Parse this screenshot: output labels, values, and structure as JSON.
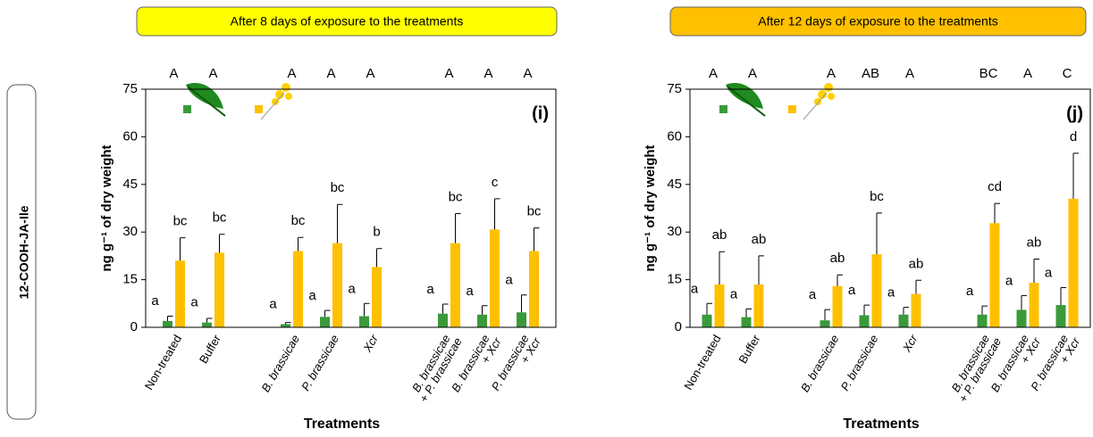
{
  "row_label": "12-COOH-JA-Ile",
  "chart_data": [
    {
      "type": "bar",
      "title": "After 8 days of exposure to the treatments",
      "title_color": "#ffff00",
      "panel_label": "(i)",
      "y_label": "ng g⁻¹ of dry weight",
      "x_label": "Treatments",
      "categories": [
        "Non-treated",
        "Buffer",
        "B. brassicae",
        "P. brassicae",
        "Xcr",
        "B. brassicae + P. brassicae",
        "B. brassicae + Xcr",
        "P. brassicae + Xcr"
      ],
      "group_letters": [
        "A",
        "A",
        "A",
        "A",
        "A",
        "A",
        "A",
        "A"
      ],
      "series": [
        {
          "color": "#3a9a3a",
          "values": [
            2,
            1.5,
            1,
            3.3,
            3.5,
            4.3,
            4,
            4.7
          ],
          "errors": [
            1.5,
            1.3,
            0.5,
            2,
            4,
            3,
            2.8,
            5.5
          ],
          "letters": [
            "a",
            "a",
            "a",
            "a",
            "a",
            "a",
            "a",
            "a"
          ]
        },
        {
          "color": "#ffc000",
          "values": [
            21,
            23.5,
            24,
            26.5,
            19,
            26.5,
            30.8,
            24
          ],
          "errors": [
            7.2,
            5.8,
            4.3,
            12.2,
            5.8,
            9.3,
            9.7,
            7.3
          ],
          "letters": [
            "bc",
            "bc",
            "bc",
            "bc",
            "b",
            "bc",
            "c",
            "bc"
          ]
        }
      ],
      "ylim": [
        0,
        75
      ],
      "yticks": [
        0,
        15,
        30,
        45,
        60,
        75
      ]
    },
    {
      "type": "bar",
      "title": "After 12 days of exposure to the treatments",
      "title_color": "#ffc000",
      "panel_label": "(j)",
      "y_label": "ng g⁻¹ of dry weight",
      "x_label": "Treatments",
      "categories": [
        "Non-treated",
        "Buffer",
        "B. brassicae",
        "P. brassicae",
        "Xcr",
        "B. brassicae + P. brassicae",
        "B. brassicae + Xcr",
        "P. brassicae + Xcr"
      ],
      "group_letters": [
        "A",
        "A",
        "A",
        "AB",
        "A",
        "BC",
        "A",
        "C"
      ],
      "series": [
        {
          "color": "#3a9a3a",
          "values": [
            4,
            3.2,
            2.2,
            3.8,
            4,
            4,
            5.5,
            7
          ],
          "errors": [
            3.5,
            2.6,
            3.4,
            3.2,
            2.3,
            2.7,
            4.5,
            5.5
          ],
          "letters": [
            "a",
            "a",
            "a",
            "a",
            "a",
            "a",
            "a",
            "a"
          ]
        },
        {
          "color": "#ffc000",
          "values": [
            13.5,
            13.5,
            13,
            23,
            10.5,
            32.8,
            14,
            40.5
          ],
          "errors": [
            10.3,
            9,
            3.5,
            13,
            4.3,
            6.2,
            7.5,
            14.3
          ],
          "letters": [
            "ab",
            "ab",
            "ab",
            "bc",
            "ab",
            "cd",
            "ab",
            "d"
          ]
        }
      ],
      "ylim": [
        0,
        75
      ],
      "yticks": [
        0,
        15,
        30,
        45,
        60,
        75
      ]
    }
  ]
}
